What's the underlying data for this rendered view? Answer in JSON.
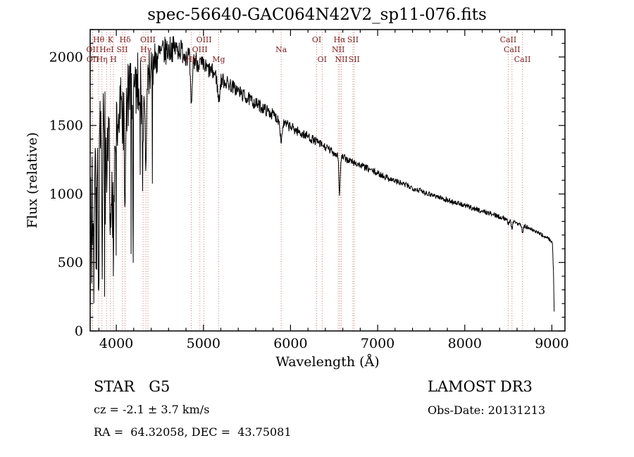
{
  "page": {
    "title": "spec-56640-GAC064N42V2_sp11-076.fits"
  },
  "footer": {
    "class_line": "STAR   G5",
    "survey": "LAMOST DR3",
    "velocity": "cz = -2.1 ± 3.7 km/s",
    "obs_date": "Obs-Date: 20131213",
    "coordinates": "RA =  64.32058, DEC =  43.75081"
  },
  "chart_data": {
    "type": "line",
    "title": "spec-56640-GAC064N42V2_sp11-076.fits",
    "xlabel": "Wavelength (Å)",
    "ylabel": "Flux (relative)",
    "xlim": [
      3700,
      9150
    ],
    "ylim": [
      0,
      2200
    ],
    "xticks": [
      4000,
      5000,
      6000,
      7000,
      8000,
      9000
    ],
    "yticks": [
      0,
      500,
      1000,
      1500,
      2000
    ],
    "x_minor_step": 200,
    "y_minor_step": 100,
    "grid": false,
    "series_color": "#000000",
    "marker_line_color": "#c4766b",
    "marker_label_color": "#7e2020",
    "label_row_y": [
      60,
      74,
      88
    ],
    "noise_seed": 7,
    "continuum": [
      [
        3700,
        850
      ],
      [
        3740,
        1050
      ],
      [
        3780,
        1250
      ],
      [
        3830,
        1380
      ],
      [
        3880,
        1400
      ],
      [
        3930,
        1320
      ],
      [
        3980,
        1380
      ],
      [
        4030,
        1570
      ],
      [
        4080,
        1620
      ],
      [
        4130,
        1700
      ],
      [
        4180,
        1760
      ],
      [
        4230,
        1810
      ],
      [
        4280,
        1800
      ],
      [
        4330,
        1780
      ],
      [
        4390,
        1910
      ],
      [
        4450,
        1980
      ],
      [
        4530,
        2030
      ],
      [
        4620,
        2060
      ],
      [
        4720,
        2060
      ],
      [
        4820,
        2010
      ],
      [
        4920,
        1970
      ],
      [
        5000,
        1930
      ],
      [
        5100,
        1890
      ],
      [
        5200,
        1840
      ],
      [
        5300,
        1800
      ],
      [
        5400,
        1750
      ],
      [
        5500,
        1700
      ],
      [
        5600,
        1660
      ],
      [
        5700,
        1620
      ],
      [
        5800,
        1580
      ],
      [
        5900,
        1520
      ],
      [
        6000,
        1490
      ],
      [
        6100,
        1450
      ],
      [
        6200,
        1420
      ],
      [
        6300,
        1380
      ],
      [
        6400,
        1340
      ],
      [
        6500,
        1300
      ],
      [
        6650,
        1250
      ],
      [
        6800,
        1210
      ],
      [
        7000,
        1150
      ],
      [
        7200,
        1095
      ],
      [
        7400,
        1045
      ],
      [
        7600,
        1000
      ],
      [
        7800,
        955
      ],
      [
        8000,
        915
      ],
      [
        8200,
        875
      ],
      [
        8400,
        835
      ],
      [
        8600,
        790
      ],
      [
        8800,
        730
      ],
      [
        8950,
        680
      ],
      [
        9005,
        650
      ],
      [
        9018,
        430
      ],
      [
        9028,
        60
      ]
    ],
    "noise_profile": [
      [
        3700,
        620
      ],
      [
        3760,
        540
      ],
      [
        3830,
        450
      ],
      [
        3900,
        390
      ],
      [
        3980,
        330
      ],
      [
        4060,
        300
      ],
      [
        4160,
        260
      ],
      [
        4280,
        220
      ],
      [
        4400,
        160
      ],
      [
        4550,
        110
      ],
      [
        4700,
        90
      ],
      [
        4900,
        78
      ],
      [
        5100,
        62
      ],
      [
        5400,
        52
      ],
      [
        5700,
        45
      ],
      [
        6000,
        38
      ],
      [
        6300,
        33
      ],
      [
        6600,
        28
      ],
      [
        7000,
        24
      ],
      [
        7500,
        21
      ],
      [
        8000,
        19
      ],
      [
        8600,
        17
      ],
      [
        9030,
        14
      ]
    ],
    "absorption_lines": [
      {
        "center": 3798,
        "depth": 0.45,
        "width": 10
      },
      {
        "center": 3835,
        "depth": 0.45,
        "width": 10
      },
      {
        "center": 3889,
        "depth": 0.45,
        "width": 10
      },
      {
        "center": 3933,
        "depth": 0.55,
        "width": 12
      },
      {
        "center": 3968,
        "depth": 0.5,
        "width": 12
      },
      {
        "center": 4101,
        "depth": 0.4,
        "width": 12
      },
      {
        "center": 4307,
        "depth": 0.18,
        "width": 16
      },
      {
        "center": 4340,
        "depth": 0.32,
        "width": 12
      },
      {
        "center": 4861,
        "depth": 0.2,
        "width": 13
      },
      {
        "center": 5175,
        "depth": 0.09,
        "width": 18
      },
      {
        "center": 5893,
        "depth": 0.09,
        "width": 14
      },
      {
        "center": 6563,
        "depth": 0.22,
        "width": 11
      },
      {
        "center": 8498,
        "depth": 0.05,
        "width": 10
      },
      {
        "center": 8542,
        "depth": 0.06,
        "width": 12
      },
      {
        "center": 8662,
        "depth": 0.06,
        "width": 12
      }
    ],
    "spectral_lines": [
      {
        "label": "Hθ",
        "wavelength": 3798,
        "row": 0
      },
      {
        "label": "K",
        "wavelength": 3933,
        "row": 0
      },
      {
        "label": "Hδ",
        "wavelength": 4101,
        "row": 0
      },
      {
        "label": "OIII",
        "wavelength": 4363,
        "row": 0
      },
      {
        "label": "OIII",
        "wavelength": 5007,
        "row": 0
      },
      {
        "label": "OI",
        "wavelength": 6300,
        "row": 0
      },
      {
        "label": "Hα",
        "wavelength": 6563,
        "row": 0
      },
      {
        "label": "SII",
        "wavelength": 6716,
        "row": 0
      },
      {
        "label": "CaII",
        "wavelength": 8498,
        "row": 0
      },
      {
        "label": "OII",
        "wavelength": 3726,
        "row": 1
      },
      {
        "label": "HeI",
        "wavelength": 3889,
        "row": 1
      },
      {
        "label": "SII",
        "wavelength": 4068,
        "row": 1
      },
      {
        "label": "Hγ",
        "wavelength": 4340,
        "row": 1
      },
      {
        "label": "OIII",
        "wavelength": 4959,
        "row": 1
      },
      {
        "label": "Na",
        "wavelength": 5893,
        "row": 1
      },
      {
        "label": "NII",
        "wavelength": 6548,
        "row": 1
      },
      {
        "label": "CaII",
        "wavelength": 8542,
        "row": 1
      },
      {
        "label": "OII",
        "wavelength": 3729,
        "row": 2
      },
      {
        "label": "Hη",
        "wavelength": 3835,
        "row": 2
      },
      {
        "label": "H",
        "wavelength": 3968,
        "row": 2
      },
      {
        "label": "G",
        "wavelength": 4307,
        "row": 2
      },
      {
        "label": "Hβ",
        "wavelength": 4861,
        "row": 2
      },
      {
        "label": "Mg",
        "wavelength": 5175,
        "row": 2
      },
      {
        "label": "OI",
        "wavelength": 6363,
        "row": 2
      },
      {
        "label": "NII",
        "wavelength": 6583,
        "row": 2
      },
      {
        "label": "SII",
        "wavelength": 6731,
        "row": 2
      },
      {
        "label": "CaII",
        "wavelength": 8662,
        "row": 2
      }
    ]
  }
}
